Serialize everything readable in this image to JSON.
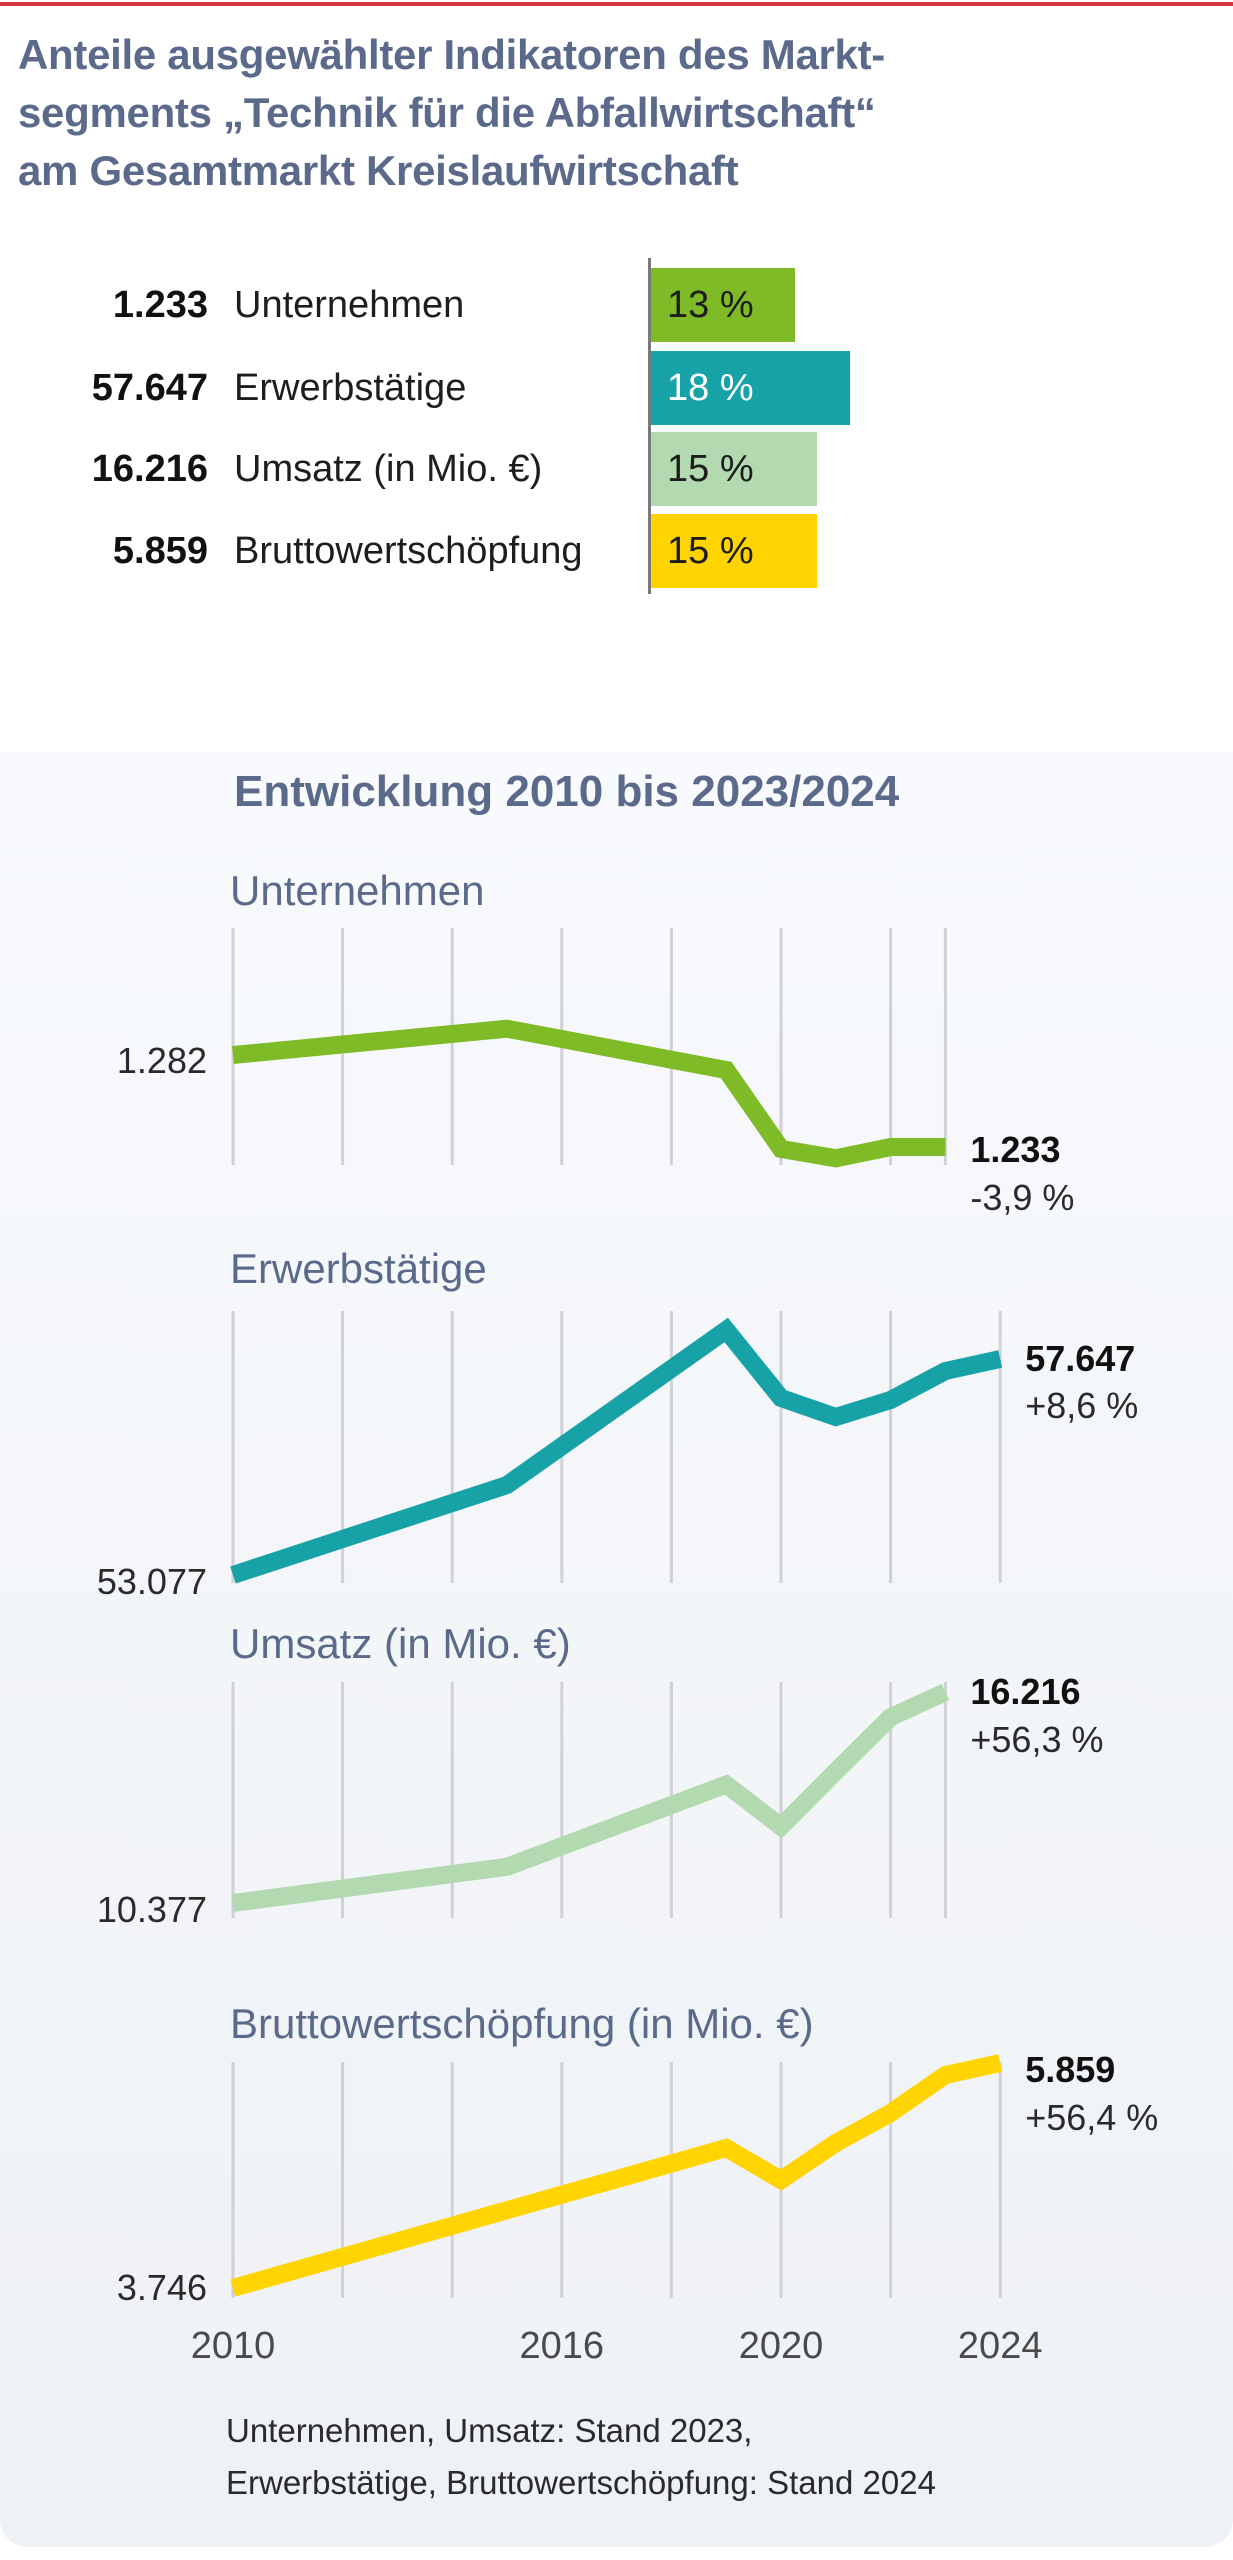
{
  "title": {
    "lines": [
      "Anteile ausgewählter Indikatoren des Markt-",
      "segments „Technik für die Abfallwirtschaft“",
      "am Gesamtmarkt Kreislaufwirtschaft"
    ]
  },
  "shares": {
    "rows": [
      {
        "value": "1.233",
        "label": "Unternehmen",
        "share_pct": 13,
        "share_label": "13 %",
        "color": "#7fba27",
        "text_color": "#1d1d1d"
      },
      {
        "value": "57.647",
        "label": "Erwerbstätige",
        "share_pct": 18,
        "share_label": "18 %",
        "color": "#17a2a8",
        "text_color": "#ffffff"
      },
      {
        "value": "16.216",
        "label": "Umsatz (in Mio. €)",
        "share_pct": 15,
        "share_label": "15 %",
        "color": "#b2d9b0",
        "text_color": "#1d1d1d"
      },
      {
        "value": "5.859",
        "label": "Bruttowertschöpfung",
        "share_pct": 15,
        "share_label": "15 %",
        "color": "#ffd400",
        "text_color": "#1d1d1d"
      }
    ]
  },
  "development": {
    "subtitle": "Entwicklung 2010 bis 2023/2024"
  },
  "chart_data": [
    {
      "type": "bar",
      "title": "Anteile am Gesamtmarkt Kreislaufwirtschaft",
      "categories": [
        "Unternehmen",
        "Erwerbstätige",
        "Umsatz (in Mio. €)",
        "Bruttowertschöpfung"
      ],
      "values": [
        13,
        18,
        15,
        15
      ],
      "unit": "%",
      "absolute_values": [
        "1.233",
        "57.647",
        "16.216",
        "5.859"
      ]
    },
    {
      "type": "line",
      "title": "Unternehmen",
      "color": "#7fba27",
      "x": [
        2010,
        2015,
        2019,
        2020,
        2021,
        2022,
        2023
      ],
      "values": [
        1282,
        1296,
        1274,
        1232,
        1227,
        1233,
        1233
      ],
      "start_label": "1.282",
      "end_label": "1.233",
      "change_label": "-3,9 %",
      "ylim": [
        1282,
        1233
      ],
      "gridline_years": [
        2010,
        2012,
        2014,
        2016,
        2018,
        2020,
        2022,
        2023
      ]
    },
    {
      "type": "line",
      "title": "Erwerbstätige",
      "color": "#17a2a8",
      "x": [
        2010,
        2015,
        2019,
        2020,
        2021,
        2022,
        2023,
        2024
      ],
      "values": [
        53077,
        54981,
        58261,
        56822,
        56420,
        56780,
        57394,
        57647
      ],
      "start_label": "53.077",
      "end_label": "57.647",
      "change_label": "+8,6 %",
      "ylim": [
        53077,
        57647
      ],
      "gridline_years": [
        2010,
        2012,
        2014,
        2016,
        2018,
        2020,
        2022,
        2024
      ]
    },
    {
      "type": "line",
      "title": "Umsatz (in Mio. €)",
      "color": "#b2d9b0",
      "x": [
        2010,
        2015,
        2019,
        2020,
        2021,
        2022,
        2023
      ],
      "values": [
        10377,
        11378,
        13657,
        12490,
        14019,
        15520,
        16216
      ],
      "start_label": "10.377",
      "end_label": "16.216",
      "change_label": "+56,3 %",
      "ylim": [
        10377,
        16216
      ],
      "gridline_years": [
        2010,
        2012,
        2014,
        2016,
        2018,
        2020,
        2022,
        2023
      ]
    },
    {
      "type": "line",
      "title": "Bruttowertschöpfung (in Mio. €)",
      "color": "#ffd400",
      "x": [
        2010,
        2019,
        2020,
        2021,
        2022,
        2023,
        2024
      ],
      "values": [
        3746,
        5061,
        4760,
        5108,
        5389,
        5746,
        5859
      ],
      "start_label": "3.746",
      "end_label": "5.859",
      "change_label": "+56,4 %",
      "ylim": [
        3746,
        5859
      ],
      "gridline_years": [
        2010,
        2012,
        2014,
        2016,
        2018,
        2020,
        2022,
        2024
      ]
    }
  ],
  "x_axis": {
    "ticks": [
      {
        "year": 2010,
        "label": "2010"
      },
      {
        "year": 2016,
        "label": "2016"
      },
      {
        "year": 2020,
        "label": "2020"
      },
      {
        "year": 2024,
        "label": "2024"
      }
    ]
  },
  "footnote": {
    "lines": [
      "Unternehmen, Umsatz: Stand 2023,",
      "Erwerbstätige, Bruttowertschöpfung: Stand 2024"
    ]
  },
  "colors": {
    "accent_rule": "#d3363f",
    "heading": "#5b6a8a"
  }
}
